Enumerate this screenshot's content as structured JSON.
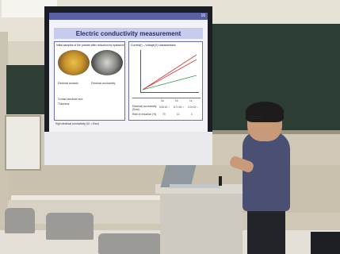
{
  "slide": {
    "number": "16",
    "title": "Electric conductivity measurement",
    "left_panel": {
      "caption": "Initial samples of the powder after reduction by hydrazine",
      "bullets": [
        "Electrical contacts",
        "Electrical conductivity",
        "Contact electrode size",
        "Thickness"
      ]
    },
    "right_panel": {
      "caption": "Current(I) – Voltage(V) characteristics",
      "table_header": [
        "",
        "1a",
        "1b",
        "1c"
      ],
      "table_rows": [
        [
          "Electrical conductivity (S/cm)",
          "5.5×10⁻²",
          "6.7×10⁻²",
          "2.0×10⁻²"
        ],
        [
          "Rate of reduction (%)",
          "70",
          "11",
          "1"
        ]
      ]
    },
    "footnote": "High electrical conductivity (10⁻² S/cm)"
  },
  "colors": {
    "slide_header": "#5b5fa6",
    "blackboard": "#2c3d33",
    "shirt": "#4a4f74"
  }
}
